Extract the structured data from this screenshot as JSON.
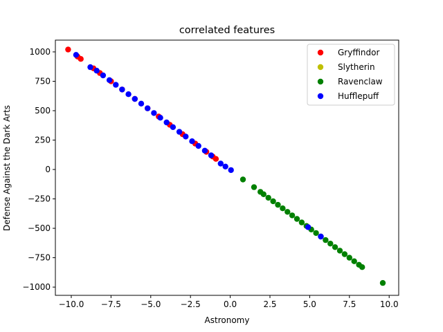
{
  "chart_data": {
    "type": "scatter",
    "title": "correlated features",
    "xlabel": "Astronomy",
    "ylabel": "Defense Against the Dark Arts",
    "xlim": [
      -11.0,
      10.6
    ],
    "ylim": [
      -1070,
      1100
    ],
    "xticks": [
      -10.0,
      -7.5,
      -5.0,
      -2.5,
      0.0,
      2.5,
      5.0,
      7.5,
      10.0
    ],
    "xtick_labels": [
      "−10.0",
      "−7.5",
      "−5.0",
      "−2.5",
      "0.0",
      "2.5",
      "5.0",
      "7.5",
      "10.0"
    ],
    "yticks": [
      -1000,
      -750,
      -500,
      -250,
      0,
      250,
      500,
      750,
      1000
    ],
    "ytick_labels": [
      "−1000",
      "−750",
      "−500",
      "−250",
      "0",
      "250",
      "500",
      "750",
      "1000"
    ],
    "grid": false,
    "legend_position": "top-right",
    "series": [
      {
        "name": "Gryffindor",
        "color": "#ff0000",
        "x": [
          -10.2,
          -9.6,
          -9.4,
          -8.6,
          -8.2,
          -7.5,
          -6.8,
          -6.0,
          -5.2,
          -4.5,
          -3.8,
          -3.0,
          -2.2,
          -1.5,
          -1.1,
          -0.9
        ],
        "y": [
          1020,
          960,
          940,
          860,
          820,
          750,
          680,
          600,
          520,
          450,
          380,
          300,
          220,
          150,
          110,
          90
        ]
      },
      {
        "name": "Slytherin",
        "color": "#bfbf00",
        "x": [],
        "y": []
      },
      {
        "name": "Ravenclaw",
        "color": "#008000",
        "x": [
          0.8,
          1.5,
          1.9,
          2.1,
          2.4,
          2.7,
          3.0,
          3.3,
          3.6,
          3.9,
          4.2,
          4.5,
          4.8,
          5.1,
          5.4,
          5.7,
          6.0,
          6.3,
          6.6,
          6.9,
          7.2,
          7.5,
          7.8,
          8.1,
          8.3,
          9.6
        ],
        "y": [
          -85,
          -150,
          -190,
          -210,
          -240,
          -270,
          -300,
          -330,
          -360,
          -390,
          -420,
          -450,
          -480,
          -510,
          -540,
          -570,
          -600,
          -630,
          -660,
          -690,
          -720,
          -750,
          -780,
          -810,
          -830,
          -965
        ]
      },
      {
        "name": "Hufflepuff",
        "color": "#0000ff",
        "x": [
          -9.7,
          -8.8,
          -8.4,
          -8.0,
          -7.6,
          -7.2,
          -6.8,
          -6.4,
          -6.0,
          -5.6,
          -5.2,
          -4.8,
          -4.4,
          -4.0,
          -3.6,
          -3.2,
          -2.8,
          -2.4,
          -2.0,
          -1.6,
          -1.2,
          -0.6,
          -0.3,
          0.05,
          4.9,
          5.7
        ],
        "y": [
          975,
          870,
          840,
          800,
          760,
          720,
          680,
          640,
          600,
          560,
          520,
          480,
          440,
          400,
          360,
          320,
          280,
          240,
          200,
          160,
          120,
          50,
          25,
          -5,
          -490,
          -570
        ]
      }
    ]
  }
}
